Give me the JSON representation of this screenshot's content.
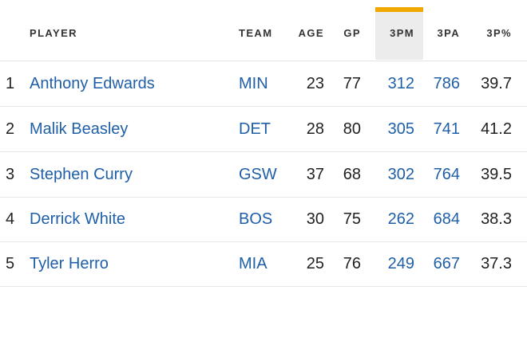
{
  "columns": {
    "player": "PLAYER",
    "team": "TEAM",
    "age": "AGE",
    "gp": "GP",
    "three_pm": "3PM",
    "three_pa": "3PA",
    "three_pct": "3P%"
  },
  "sorted_column": "3PM",
  "colors": {
    "sort_indicator": "#f0a800",
    "link": "#1f5fa8",
    "text": "#222222"
  },
  "rows": [
    {
      "rank": "1",
      "player": "Anthony Edwards",
      "team": "MIN",
      "age": "23",
      "gp": "77",
      "three_pm": "312",
      "three_pa": "786",
      "three_pct": "39.7"
    },
    {
      "rank": "2",
      "player": "Malik Beasley",
      "team": "DET",
      "age": "28",
      "gp": "80",
      "three_pm": "305",
      "three_pa": "741",
      "three_pct": "41.2"
    },
    {
      "rank": "3",
      "player": "Stephen Curry",
      "team": "GSW",
      "age": "37",
      "gp": "68",
      "three_pm": "302",
      "three_pa": "764",
      "three_pct": "39.5"
    },
    {
      "rank": "4",
      "player": "Derrick White",
      "team": "BOS",
      "age": "30",
      "gp": "75",
      "three_pm": "262",
      "three_pa": "684",
      "three_pct": "38.3"
    },
    {
      "rank": "5",
      "player": "Tyler Herro",
      "team": "MIA",
      "age": "25",
      "gp": "76",
      "three_pm": "249",
      "three_pa": "667",
      "three_pct": "37.3"
    }
  ]
}
